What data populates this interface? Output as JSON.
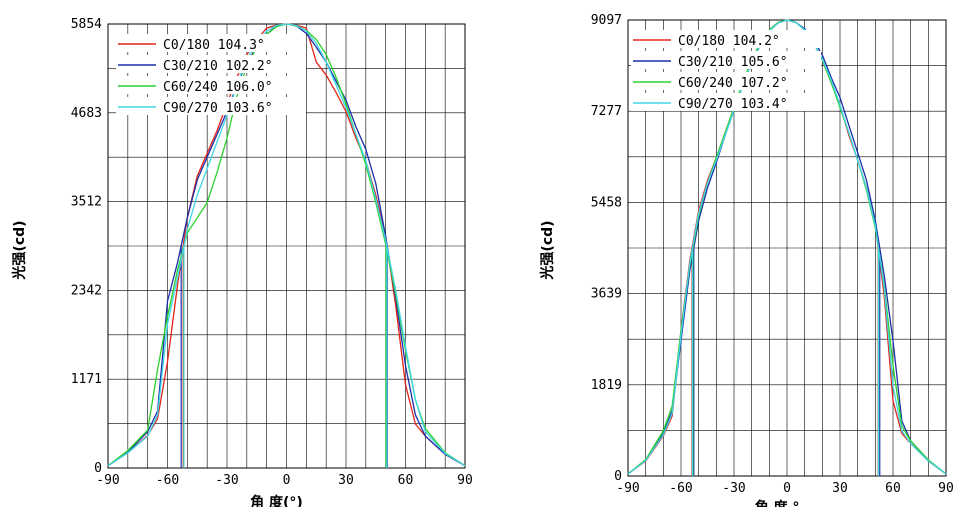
{
  "colors": {
    "C0": "#e2231a",
    "C30": "#1c2fa8",
    "C60": "#2bd12b",
    "C90": "#3fd6e6"
  },
  "chart_data": [
    {
      "type": "line",
      "xlabel": "角 度(°)",
      "ylabel": "光强(cd)",
      "xlim": [
        -90,
        90
      ],
      "ylim": [
        0,
        5854
      ],
      "xticks": [
        "-90",
        "-60",
        "-30",
        "0",
        "30",
        "60",
        "90"
      ],
      "yticks": [
        "0",
        "1171",
        "2342",
        "3512",
        "4683",
        "5854"
      ],
      "grid": true,
      "legend_position": "top-left",
      "legend_entries": [
        "C0/180 104.3°",
        "C30/210 102.2°",
        "C60/240 106.0°",
        "C90/270 103.6°"
      ],
      "series": [
        {
          "name": "C0/180",
          "color_key": "C0",
          "x": [
            -90,
            -80,
            -70,
            -65,
            -60,
            -55,
            -50,
            -45,
            -40,
            -35,
            -30,
            -25,
            -20,
            -15,
            -10,
            -5,
            0,
            5,
            10,
            15,
            20,
            25,
            30,
            35,
            40,
            45,
            50,
            55,
            60,
            65,
            70,
            80,
            90
          ],
          "y": [
            30,
            200,
            430,
            650,
            1400,
            2400,
            3300,
            3850,
            4150,
            4450,
            4800,
            5150,
            5450,
            5650,
            5800,
            5840,
            5854,
            5840,
            5800,
            5350,
            5180,
            4950,
            4700,
            4350,
            4050,
            3600,
            3050,
            2150,
            1100,
            580,
            420,
            180,
            30
          ]
        },
        {
          "name": "C30/210",
          "color_key": "C30",
          "x": [
            -90,
            -80,
            -70,
            -65,
            -60,
            -55,
            -50,
            -45,
            -40,
            -35,
            -30,
            -25,
            -20,
            -15,
            -10,
            -5,
            0,
            5,
            10,
            15,
            20,
            25,
            30,
            35,
            40,
            45,
            50,
            55,
            60,
            65,
            70,
            80,
            90
          ],
          "y": [
            30,
            210,
            480,
            750,
            2200,
            2700,
            3300,
            3800,
            4100,
            4400,
            4700,
            5050,
            5350,
            5550,
            5720,
            5830,
            5854,
            5830,
            5730,
            5550,
            5350,
            5100,
            4850,
            4500,
            4200,
            3750,
            3050,
            2250,
            1350,
            700,
            420,
            180,
            30
          ]
        },
        {
          "name": "C60/240",
          "color_key": "C60",
          "x": [
            -90,
            -80,
            -70,
            -65,
            -60,
            -55,
            -50,
            -45,
            -40,
            -35,
            -30,
            -25,
            -20,
            -15,
            -10,
            -5,
            0,
            5,
            10,
            15,
            20,
            25,
            30,
            35,
            40,
            45,
            50,
            55,
            60,
            65,
            70,
            80,
            90
          ],
          "y": [
            30,
            230,
            500,
            1300,
            2000,
            2600,
            3100,
            3300,
            3500,
            3900,
            4350,
            4900,
            5300,
            5550,
            5720,
            5820,
            5854,
            5830,
            5770,
            5650,
            5450,
            5150,
            4800,
            4400,
            4000,
            3500,
            2950,
            2300,
            1550,
            900,
            520,
            200,
            30
          ]
        },
        {
          "name": "C90/270",
          "color_key": "C90",
          "x": [
            -90,
            -80,
            -70,
            -65,
            -60,
            -55,
            -50,
            -45,
            -40,
            -35,
            -30,
            -25,
            -20,
            -15,
            -10,
            -5,
            0,
            5,
            10,
            15,
            20,
            25,
            30,
            35,
            40,
            45,
            50,
            55,
            60,
            65,
            70,
            80,
            90
          ],
          "y": [
            30,
            200,
            420,
            700,
            1900,
            2500,
            3150,
            3600,
            3950,
            4300,
            4650,
            5050,
            5400,
            5600,
            5760,
            5835,
            5854,
            5835,
            5760,
            5600,
            5350,
            5050,
            4750,
            4400,
            4050,
            3550,
            3000,
            2350,
            1600,
            900,
            480,
            190,
            30
          ]
        }
      ]
    },
    {
      "type": "line",
      "xlabel": "角 度 °",
      "ylabel": "光强(cd)",
      "xlim": [
        -90,
        90
      ],
      "ylim": [
        0,
        9097
      ],
      "xticks": [
        "-90",
        "-60",
        "-30",
        "0",
        "30",
        "60",
        "90"
      ],
      "yticks": [
        "0",
        "1819",
        "3639",
        "5458",
        "7277",
        "9097"
      ],
      "grid": true,
      "legend_position": "top-left",
      "legend_entries": [
        "C0/180 104.2°",
        "C30/210 105.6°",
        "C60/240 107.2°",
        "C90/270 103.4°"
      ],
      "series": [
        {
          "name": "C0/180",
          "color_key": "C0",
          "x": [
            -90,
            -80,
            -70,
            -65,
            -60,
            -55,
            -50,
            -45,
            -40,
            -35,
            -30,
            -25,
            -20,
            -15,
            -10,
            -5,
            0,
            5,
            10,
            15,
            20,
            25,
            30,
            35,
            40,
            45,
            50,
            55,
            60,
            65,
            70,
            80,
            90
          ],
          "y": [
            40,
            300,
            800,
            1200,
            2900,
            4300,
            5300,
            5900,
            6350,
            6850,
            7350,
            7850,
            8300,
            8650,
            8900,
            9050,
            9097,
            9050,
            8900,
            8650,
            8300,
            7850,
            7400,
            6800,
            6300,
            5750,
            5000,
            3600,
            1500,
            850,
            650,
            300,
            40
          ]
        },
        {
          "name": "C30/210",
          "color_key": "C30",
          "x": [
            -90,
            -80,
            -70,
            -65,
            -60,
            -55,
            -50,
            -45,
            -40,
            -35,
            -30,
            -25,
            -20,
            -15,
            -10,
            -5,
            0,
            5,
            10,
            15,
            20,
            25,
            30,
            35,
            40,
            45,
            50,
            55,
            60,
            65,
            70,
            80,
            90
          ],
          "y": [
            40,
            320,
            850,
            1300,
            2700,
            4100,
            5100,
            5750,
            6250,
            6800,
            7300,
            7800,
            8250,
            8600,
            8880,
            9040,
            9097,
            9050,
            8920,
            8700,
            8400,
            7950,
            7550,
            7000,
            6450,
            5900,
            5100,
            4000,
            2700,
            1100,
            700,
            320,
            40
          ]
        },
        {
          "name": "C60/240",
          "color_key": "C60",
          "x": [
            -90,
            -80,
            -70,
            -65,
            -60,
            -55,
            -50,
            -45,
            -40,
            -35,
            -30,
            -25,
            -20,
            -15,
            -10,
            -5,
            0,
            5,
            10,
            15,
            20,
            25,
            30,
            35,
            40,
            45,
            50,
            55,
            60,
            65,
            70,
            80,
            90
          ],
          "y": [
            40,
            330,
            900,
            1400,
            2900,
            4200,
            5200,
            5850,
            6350,
            6850,
            7350,
            7850,
            8300,
            8650,
            8900,
            9050,
            9097,
            9050,
            8900,
            8650,
            8300,
            7850,
            7350,
            6850,
            6300,
            5700,
            4950,
            3800,
            2200,
            1000,
            700,
            320,
            40
          ]
        },
        {
          "name": "C90/270",
          "color_key": "C90",
          "x": [
            -90,
            -80,
            -70,
            -65,
            -60,
            -55,
            -50,
            -45,
            -40,
            -35,
            -30,
            -25,
            -20,
            -15,
            -10,
            -5,
            0,
            5,
            10,
            15,
            20,
            25,
            30,
            35,
            40,
            45,
            50,
            55,
            60,
            65,
            70,
            80,
            90
          ],
          "y": [
            40,
            310,
            820,
            1250,
            2800,
            4250,
            5250,
            5850,
            6300,
            6800,
            7300,
            7800,
            8250,
            8600,
            8880,
            9040,
            9097,
            9050,
            8900,
            8650,
            8320,
            7900,
            7400,
            6850,
            6300,
            5750,
            5000,
            3750,
            1800,
            900,
            650,
            300,
            40
          ]
        }
      ]
    }
  ]
}
